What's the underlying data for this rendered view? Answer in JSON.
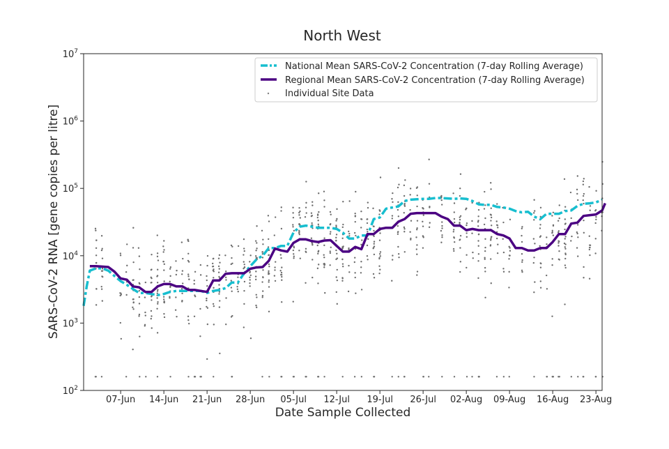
{
  "chart_data": {
    "type": "line",
    "title": "North West",
    "xlabel": "Date Sample Collected",
    "ylabel": "SARS-CoV-2 RNA [gene copies per litre]",
    "yscale": "log",
    "ylim": [
      100,
      10000000
    ],
    "xlim": [
      -6,
      78
    ],
    "y_ticks": [
      {
        "value": 100,
        "base": "10",
        "exp": "2"
      },
      {
        "value": 1000,
        "base": "10",
        "exp": "3"
      },
      {
        "value": 10000,
        "base": "10",
        "exp": "4"
      },
      {
        "value": 100000,
        "base": "10",
        "exp": "5"
      },
      {
        "value": 1000000,
        "base": "10",
        "exp": "6"
      },
      {
        "value": 10000000,
        "base": "10",
        "exp": "7"
      }
    ],
    "x_ticks": [
      {
        "day": 0,
        "label": "07-Jun"
      },
      {
        "day": 7,
        "label": "14-Jun"
      },
      {
        "day": 14,
        "label": "21-Jun"
      },
      {
        "day": 21,
        "label": "28-Jun"
      },
      {
        "day": 28,
        "label": "05-Jul"
      },
      {
        "day": 35,
        "label": "12-Jul"
      },
      {
        "day": 42,
        "label": "19-Jul"
      },
      {
        "day": 49,
        "label": "26-Jul"
      },
      {
        "day": 56,
        "label": "02-Aug"
      },
      {
        "day": 63,
        "label": "09-Aug"
      },
      {
        "day": 70,
        "label": "16-Aug"
      },
      {
        "day": 77,
        "label": "23-Aug"
      }
    ],
    "legend": {
      "placement": "top-right",
      "entries": [
        {
          "label": "National Mean SARS-CoV-2 Concentration (7-day Rolling Average)",
          "color": "#17becf",
          "style": "dashdot"
        },
        {
          "label": "Regional Mean SARS-CoV-2 Concentration (7-day Rolling Average)",
          "color": "#4b0082",
          "style": "solid"
        },
        {
          "label": "Individual Site Data",
          "color": "#808080",
          "style": "marker"
        }
      ]
    },
    "series": [
      {
        "name": "National Mean SARS-CoV-2 Concentration (7-day Rolling Average)",
        "color": "#17becf",
        "points": [
          [
            -6,
            1800
          ],
          [
            -5.5,
            3500
          ],
          [
            -5,
            6000
          ],
          [
            -4,
            6500
          ],
          [
            -3,
            6500
          ],
          [
            -2,
            6000
          ],
          [
            -1,
            5000
          ],
          [
            0,
            4200
          ],
          [
            1,
            3700
          ],
          [
            2,
            3200
          ],
          [
            3,
            2800
          ],
          [
            4,
            2800
          ],
          [
            5,
            2700
          ],
          [
            6,
            2600
          ],
          [
            7,
            2700
          ],
          [
            8,
            2900
          ],
          [
            9,
            3000
          ],
          [
            10,
            3000
          ],
          [
            11,
            3000
          ],
          [
            12,
            3000
          ],
          [
            13,
            3000
          ],
          [
            14,
            2800
          ],
          [
            15,
            3000
          ],
          [
            16,
            3100
          ],
          [
            17,
            3300
          ],
          [
            18,
            4000
          ],
          [
            19,
            4000
          ],
          [
            20,
            5500
          ],
          [
            21,
            7000
          ],
          [
            22,
            8800
          ],
          [
            23,
            10000
          ],
          [
            24,
            13000
          ],
          [
            25,
            13000
          ],
          [
            26,
            14000
          ],
          [
            27,
            14000
          ],
          [
            28,
            22000
          ],
          [
            29,
            27000
          ],
          [
            30,
            28000
          ],
          [
            31,
            27000
          ],
          [
            32,
            26000
          ],
          [
            33,
            26000
          ],
          [
            34,
            26000
          ],
          [
            35,
            25000
          ],
          [
            36,
            22000
          ],
          [
            37,
            18000
          ],
          [
            38,
            18000
          ],
          [
            39,
            20000
          ],
          [
            40,
            20000
          ],
          [
            41,
            35000
          ],
          [
            42,
            37000
          ],
          [
            43,
            50000
          ],
          [
            44,
            52000
          ],
          [
            45,
            54000
          ],
          [
            46,
            65000
          ],
          [
            47,
            68000
          ],
          [
            48,
            69000
          ],
          [
            49,
            70000
          ],
          [
            50,
            70000
          ],
          [
            51,
            72000
          ],
          [
            52,
            72000
          ],
          [
            53,
            71000
          ],
          [
            54,
            70000
          ],
          [
            55,
            71000
          ],
          [
            56,
            70000
          ],
          [
            57,
            65000
          ],
          [
            58,
            58000
          ],
          [
            59,
            57000
          ],
          [
            60,
            57000
          ],
          [
            61,
            53000
          ],
          [
            62,
            52000
          ],
          [
            63,
            50000
          ],
          [
            64,
            46000
          ],
          [
            65,
            44000
          ],
          [
            66,
            45000
          ],
          [
            67,
            38000
          ],
          [
            68,
            35000
          ],
          [
            69,
            42000
          ],
          [
            70,
            42000
          ],
          [
            71,
            42000
          ],
          [
            72,
            46000
          ],
          [
            73,
            47000
          ],
          [
            74,
            55000
          ],
          [
            75,
            59000
          ],
          [
            76,
            60000
          ],
          [
            77,
            62000
          ],
          [
            78,
            68000
          ]
        ]
      },
      {
        "name": "Regional Mean SARS-CoV-2 Concentration (7-day Rolling Average)",
        "color": "#4b0082",
        "points": [
          [
            -5,
            7000
          ],
          [
            -4,
            7000
          ],
          [
            -3,
            6900
          ],
          [
            -2,
            6800
          ],
          [
            -1,
            5800
          ],
          [
            0,
            4600
          ],
          [
            1,
            4400
          ],
          [
            2,
            3500
          ],
          [
            3,
            3400
          ],
          [
            4,
            2900
          ],
          [
            5,
            2900
          ],
          [
            6,
            3500
          ],
          [
            7,
            3800
          ],
          [
            8,
            3800
          ],
          [
            9,
            3500
          ],
          [
            10,
            3500
          ],
          [
            11,
            3100
          ],
          [
            12,
            3100
          ],
          [
            13,
            3000
          ],
          [
            14,
            2900
          ],
          [
            15,
            4300
          ],
          [
            16,
            4300
          ],
          [
            17,
            5400
          ],
          [
            18,
            5500
          ],
          [
            19,
            5500
          ],
          [
            20,
            5500
          ],
          [
            21,
            6400
          ],
          [
            22,
            6700
          ],
          [
            23,
            6800
          ],
          [
            24,
            8400
          ],
          [
            25,
            12800
          ],
          [
            26,
            12000
          ],
          [
            27,
            11500
          ],
          [
            28,
            15500
          ],
          [
            29,
            17500
          ],
          [
            30,
            17500
          ],
          [
            31,
            16500
          ],
          [
            32,
            16000
          ],
          [
            33,
            16800
          ],
          [
            34,
            17000
          ],
          [
            35,
            14000
          ],
          [
            36,
            11500
          ],
          [
            37,
            11500
          ],
          [
            38,
            13500
          ],
          [
            39,
            12500
          ],
          [
            40,
            21000
          ],
          [
            41,
            21000
          ],
          [
            42,
            25000
          ],
          [
            43,
            26000
          ],
          [
            44,
            26000
          ],
          [
            45,
            32000
          ],
          [
            46,
            35000
          ],
          [
            47,
            42000
          ],
          [
            48,
            43000
          ],
          [
            49,
            43000
          ],
          [
            50,
            43000
          ],
          [
            51,
            43000
          ],
          [
            52,
            38000
          ],
          [
            53,
            35000
          ],
          [
            54,
            28000
          ],
          [
            55,
            28000
          ],
          [
            56,
            24000
          ],
          [
            57,
            25000
          ],
          [
            58,
            24000
          ],
          [
            59,
            24000
          ],
          [
            60,
            24000
          ],
          [
            61,
            21000
          ],
          [
            62,
            20000
          ],
          [
            63,
            18000
          ],
          [
            64,
            13000
          ],
          [
            65,
            13000
          ],
          [
            66,
            12000
          ],
          [
            67,
            12000
          ],
          [
            68,
            13000
          ],
          [
            69,
            13000
          ],
          [
            70,
            16000
          ],
          [
            71,
            21000
          ],
          [
            72,
            21000
          ],
          [
            73,
            30000
          ],
          [
            74,
            31000
          ],
          [
            75,
            39000
          ],
          [
            76,
            40000
          ],
          [
            77,
            41000
          ],
          [
            78,
            47000
          ],
          [
            78.5,
            60000
          ]
        ]
      }
    ]
  }
}
